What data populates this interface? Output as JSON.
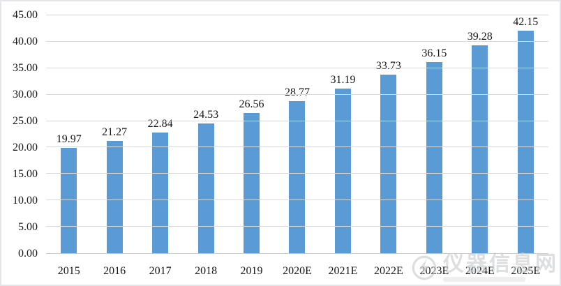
{
  "watermark": {
    "text": "仪器信息网"
  },
  "chart_data": {
    "type": "bar",
    "categories": [
      "2015",
      "2016",
      "2017",
      "2018",
      "2019",
      "2020E",
      "2021E",
      "2022E",
      "2023E",
      "2024E",
      "2025E"
    ],
    "values": [
      19.97,
      21.27,
      22.84,
      24.53,
      26.56,
      28.77,
      31.19,
      33.73,
      36.15,
      39.28,
      42.15
    ],
    "value_labels": [
      "19.97",
      "21.27",
      "22.84",
      "24.53",
      "26.56",
      "28.77",
      "31.19",
      "33.73",
      "36.15",
      "39.28",
      "42.15"
    ],
    "ytick_labels": [
      "0.00",
      "5.00",
      "10.00",
      "15.00",
      "20.00",
      "25.00",
      "30.00",
      "35.00",
      "40.00",
      "45.00"
    ],
    "title": "",
    "xlabel": "",
    "ylabel": "",
    "ylim": [
      0,
      45
    ],
    "ytick_step": 5,
    "grid": true,
    "legend": false,
    "bar_color": "#5b9bd5",
    "gridline_color": "#d9d9d9",
    "text_color": "#161616"
  }
}
